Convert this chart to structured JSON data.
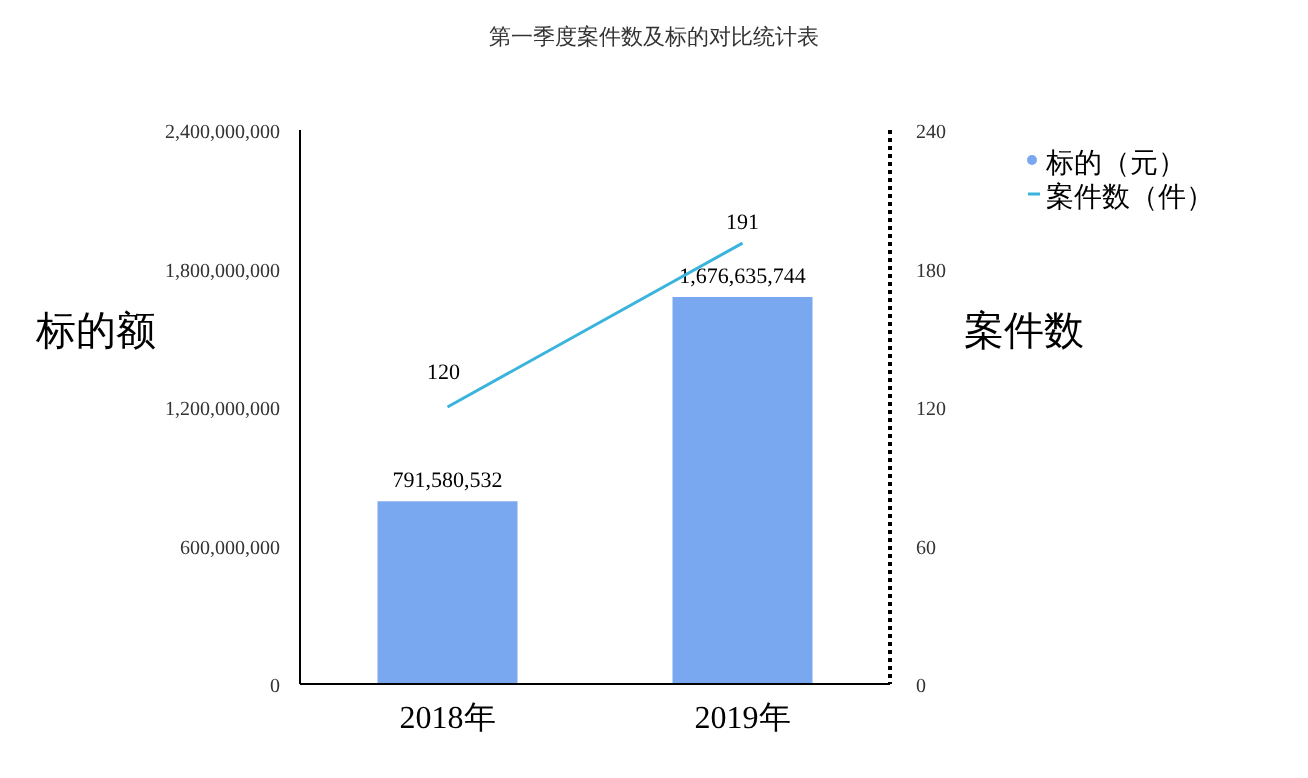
{
  "chart_data": {
    "type": "bar",
    "title": "第一季度案件数及标的对比统计表",
    "ylabel": "标的额",
    "y2label": "案件数",
    "categories": [
      "2018年",
      "2019年"
    ],
    "series": [
      {
        "name": "标的（元）",
        "color": "#7aa8f0",
        "values": [
          791580532,
          1676635744
        ],
        "value_labels": [
          "791,580,532",
          "1,676,635,744"
        ]
      },
      {
        "name": "案件数（件）",
        "type": "line",
        "axis": "y2",
        "color": "#3ab4dc",
        "values": [
          120,
          191
        ],
        "value_labels": [
          "120",
          "191"
        ]
      }
    ],
    "ylim": [
      0,
      2400000000
    ],
    "yticks": [
      {
        "value": 0,
        "label": "0"
      },
      {
        "value": 600000000,
        "label": "600,000,000"
      },
      {
        "value": 1200000000,
        "label": "1,200,000,000"
      },
      {
        "value": 1800000000,
        "label": "1,800,000,000"
      },
      {
        "value": 2400000000,
        "label": "2,400,000,000"
      }
    ],
    "y2lim": [
      0,
      240
    ],
    "y2ticks": [
      0,
      60,
      120,
      180,
      240
    ],
    "legend": "top right"
  }
}
